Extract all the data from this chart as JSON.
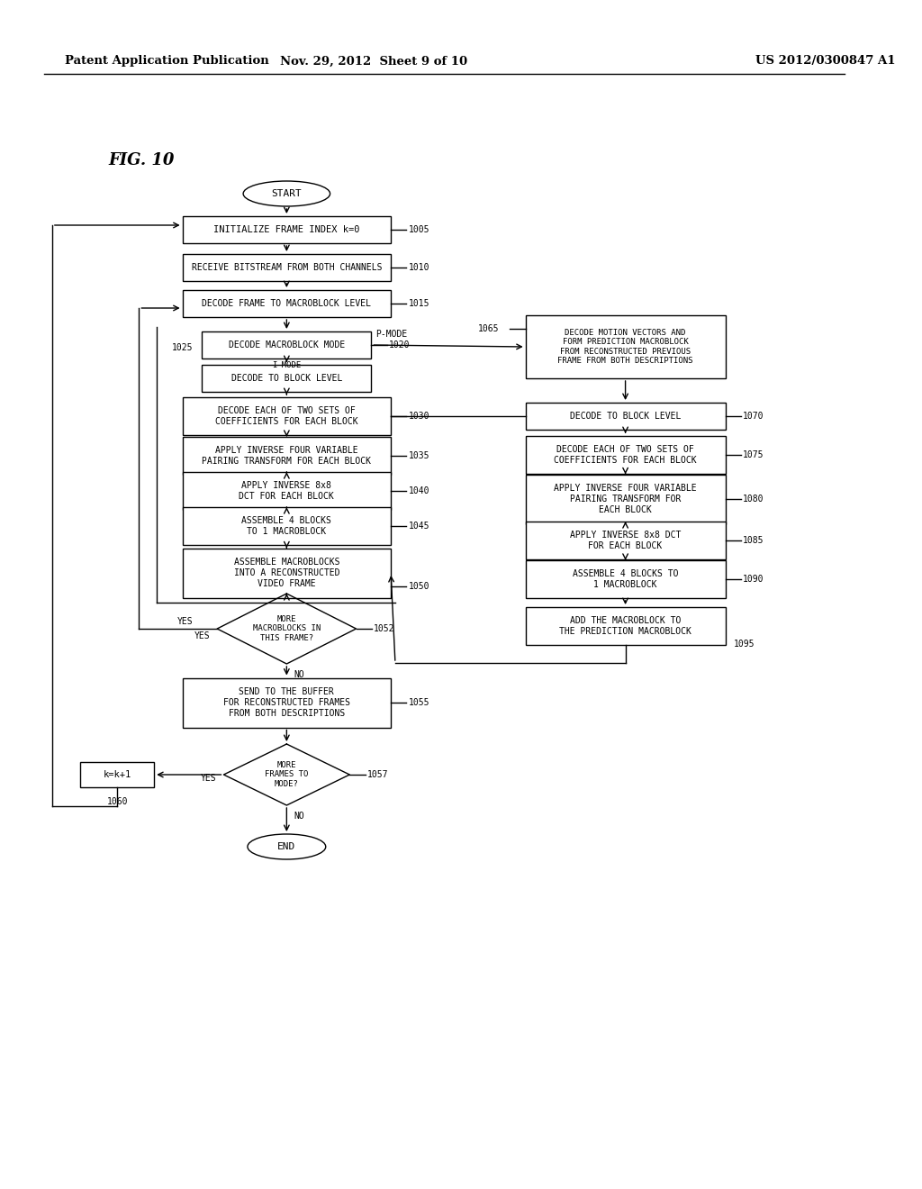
{
  "header_left": "Patent Application Publication",
  "header_mid": "Nov. 29, 2012  Sheet 9 of 10",
  "header_right": "US 2012/0300847 A1",
  "fig_label": "FIG. 10",
  "bg_color": "#ffffff"
}
